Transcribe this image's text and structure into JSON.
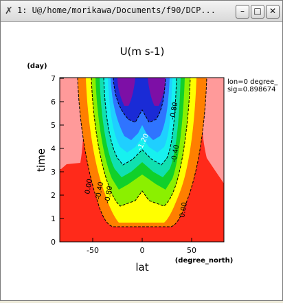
{
  "window": {
    "title": "1: U@/home/morikawa/Documents/f90/DCP...",
    "controls": {
      "minimize": "–",
      "maximize": "□",
      "close": "✕"
    }
  },
  "plot": {
    "title": "U(m s-1)",
    "x_label": "lat",
    "x_units": "(degree_north)",
    "y_label": "time",
    "y_units": "(day)",
    "x_ticks": [
      "-50",
      "0",
      "50"
    ],
    "y_ticks": [
      "0",
      "1",
      "2",
      "3",
      "4",
      "5",
      "6",
      "7"
    ],
    "info_line1": "lon=0 degree_",
    "info_line2": "sig=0.898674",
    "contour_labels": [
      "0.00",
      "-0.40",
      "-0.80",
      "-1.20",
      "0.00",
      "-0.40",
      "-0.80",
      "0.00"
    ]
  },
  "chart_data": {
    "type": "heatmap",
    "title": "U(m s-1)",
    "xlabel": "lat (degree_north)",
    "ylabel": "time (day)",
    "xlim": [
      -85,
      85
    ],
    "ylim": [
      0,
      7
    ],
    "x_ticks": [
      -50,
      0,
      50
    ],
    "y_ticks": [
      0,
      1,
      2,
      3,
      4,
      5,
      6,
      7
    ],
    "contour_levels": [
      0.0,
      -0.4,
      -0.8,
      -1.2
    ]
  },
  "colors": {
    "purple": "#7d0fa6",
    "darkblue": "#1a2bd6",
    "blue": "#2f74ff",
    "lightblue": "#1fcfff",
    "cyan": "#17f1ef",
    "teal": "#10e0b0",
    "green": "#10d02a",
    "lime": "#8bf000",
    "yellow": "#ffff00",
    "orange": "#ff7f00",
    "red": "#ff2a1a",
    "pink": "#ff9a9a"
  }
}
